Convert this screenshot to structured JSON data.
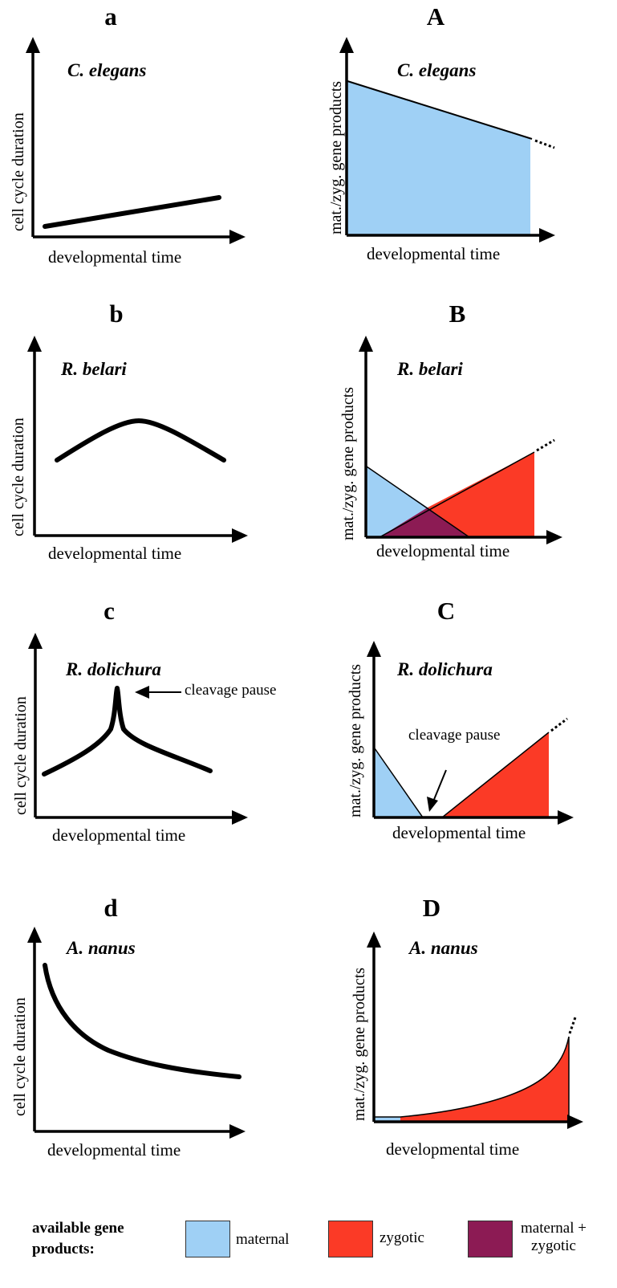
{
  "colors": {
    "maternal": "#9fd0f5",
    "zygotic": "#fb3a26",
    "maternal_zygotic": "#8c1b54",
    "curve": "#000000"
  },
  "panels": {
    "a": {
      "letter": "a",
      "species": "C. elegans",
      "ylabel": "cell cycle duration",
      "xlabel": "developmental time"
    },
    "A": {
      "letter": "A",
      "species": "C. elegans",
      "ylabel": "mat./zyg. gene products",
      "xlabel": "developmental time"
    },
    "b": {
      "letter": "b",
      "species": "R. belari",
      "ylabel": "cell cycle duration",
      "xlabel": "developmental time"
    },
    "B": {
      "letter": "B",
      "species": "R. belari",
      "ylabel": "mat./zyg. gene products",
      "xlabel": "developmental time"
    },
    "c": {
      "letter": "c",
      "species": "R. dolichura",
      "ylabel": "cell cycle duration",
      "xlabel": "developmental time",
      "annotation": "cleavage pause"
    },
    "C": {
      "letter": "C",
      "species": "R. dolichura",
      "ylabel": "mat./zyg. gene products",
      "xlabel": "developmental time",
      "annotation": "cleavage pause"
    },
    "d": {
      "letter": "d",
      "species": "A. nanus",
      "ylabel": "cell cycle duration",
      "xlabel": "developmental time"
    },
    "D": {
      "letter": "D",
      "species": "A. nanus",
      "ylabel": "mat./zyg. gene products",
      "xlabel": "developmental time"
    }
  },
  "legend": {
    "title": "available gene products:",
    "items": [
      {
        "key": "maternal",
        "label": "maternal"
      },
      {
        "key": "zygotic",
        "label": "zygotic"
      },
      {
        "key": "maternal_zygotic",
        "label": "maternal + zygotic"
      }
    ]
  }
}
